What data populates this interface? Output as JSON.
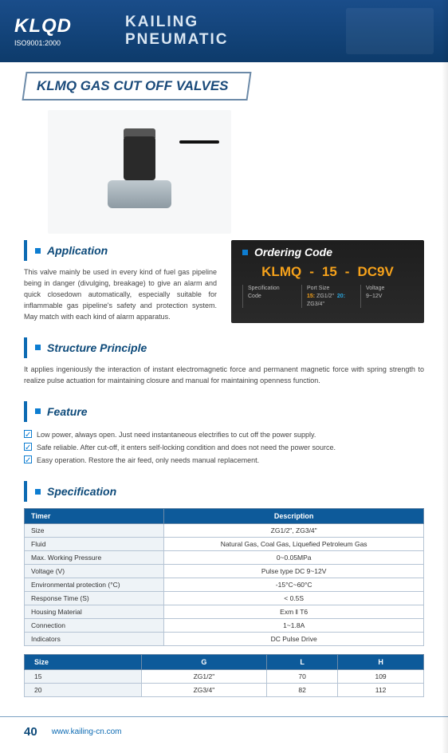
{
  "banner": {
    "logo": "KLQD",
    "iso": "ISO9001:2000",
    "line1": "KAILING",
    "line2": "PNEUMATIC"
  },
  "title": "KLMQ GAS CUT OFF VALVES",
  "application": {
    "heading": "Application",
    "text": "This valve mainly be used in every kind of fuel gas pipeline being in danger (divulging, breakage) to give an alarm and quick closedown automatically, especially suitable for inflammable gas pipeline's safety and protection system. May match with each kind of alarm apparatus."
  },
  "ordering": {
    "heading": "Ordering Code",
    "parts": [
      "KLMQ",
      "15",
      "DC9V"
    ],
    "cols": [
      {
        "label": "Specification\nCode"
      },
      {
        "label": "Port Size",
        "opt1": "15:",
        "opt1v": "ZG1/2\"",
        "opt2": "20:",
        "opt2v": "ZG3/4\""
      },
      {
        "label": "Voltage",
        "sub": "9~12V"
      }
    ]
  },
  "structure": {
    "heading": "Structure Principle",
    "text": "It applies ingeniously the interaction of instant electromagnetic force and permanent magnetic force with spring strength to realize pulse actuation for maintaining closure and manual for maintaining openness function."
  },
  "feature": {
    "heading": "Feature",
    "items": [
      "Low power, always open. Just need instantaneous electrifies to cut off the power supply.",
      "Safe reliable. After cut-off, it enters self-locking condition and does not need the power source.",
      "Easy operation. Restore the air feed, only needs manual replacement."
    ]
  },
  "spec": {
    "heading": "Specification",
    "headers": [
      "Timer",
      "Description"
    ],
    "rows": [
      [
        "Size",
        "ZG1/2\",  ZG3/4\""
      ],
      [
        "Fluid",
        "Natural Gas, Coal Gas, Liquefied Petroleum Gas"
      ],
      [
        "Max. Working Pressure",
        "0~0.05MPa"
      ],
      [
        "Voltage (V)",
        "Pulse type DC 9~12V"
      ],
      [
        "Environmental protection (°C)",
        "-15°C~60°C"
      ],
      [
        "Response Time (S)",
        "< 0.5S"
      ],
      [
        "Housing Material",
        "Exm ‖ T6"
      ],
      [
        "Connection",
        "1~1.8A"
      ],
      [
        "Indicators",
        "DC Pulse Drive"
      ]
    ]
  },
  "sizes": {
    "headers": [
      "Size",
      "G",
      "L",
      "H"
    ],
    "rows": [
      [
        "15",
        "ZG1/2\"",
        "70",
        "109"
      ],
      [
        "20",
        "ZG3/4\"",
        "82",
        "112"
      ]
    ]
  },
  "footer": {
    "page": "40",
    "url": "www.kailing-cn.com"
  }
}
